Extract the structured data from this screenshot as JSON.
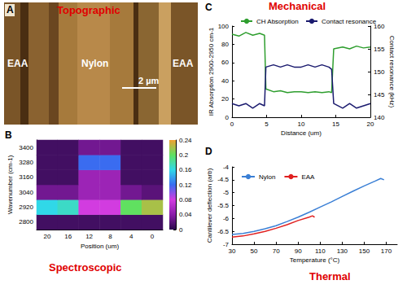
{
  "chart_data": [
    {
      "panel": "A",
      "type": "image",
      "title": "Topographic",
      "labels": [
        "EAA",
        "Nylon",
        "EAA"
      ],
      "scale_bar": "2 µm"
    },
    {
      "panel": "B",
      "type": "heatmap",
      "title": "Spectroscopic",
      "xlabel": "Position (um)",
      "ylabel": "Wavenumber (cm-1)",
      "x": [
        20,
        16,
        12,
        8,
        4,
        0
      ],
      "y": [
        2800,
        2920,
        3040,
        3160,
        3280,
        3400
      ],
      "cells": [
        [
          0.01,
          0.01,
          0.01,
          0.01,
          0.01,
          0.01
        ],
        [
          0.16,
          0.17,
          0.08,
          0.08,
          0.2,
          0.22
        ],
        [
          0.03,
          0.03,
          0.05,
          0.05,
          0.03,
          0.02
        ],
        [
          0.01,
          0.01,
          0.05,
          0.05,
          0.01,
          0.01
        ],
        [
          0.01,
          0.01,
          0.12,
          0.12,
          0.01,
          0.01
        ],
        [
          0.01,
          0.01,
          0.03,
          0.03,
          0.01,
          0.01
        ]
      ],
      "zlim": [
        0,
        0.24
      ],
      "zticks": [
        0,
        0.04,
        0.08,
        0.12,
        0.16,
        0.2,
        0.24
      ]
    },
    {
      "panel": "C",
      "type": "line",
      "title": "Mechanical",
      "xlabel": "Distance (um)",
      "ylabel": "IR Absorption 2900-2950 cm-1",
      "y2label": "Contact resonance (kHz)",
      "x": [
        0,
        1,
        2,
        3,
        4,
        4.7,
        4.9,
        6,
        7,
        8,
        9,
        10,
        11,
        12,
        13,
        14,
        14.4,
        14.7,
        16,
        17,
        18,
        19,
        20
      ],
      "series": [
        {
          "name": "CH Absorption",
          "color": "#2e9e2e",
          "values": [
            91,
            89,
            93,
            90,
            92,
            90,
            31,
            28,
            29,
            27,
            28,
            28,
            27,
            28,
            27,
            28,
            27,
            75,
            77,
            75,
            78,
            76,
            77
          ]
        },
        {
          "name": "Contact resonance",
          "color": "#1a1a6e",
          "axis": "y2",
          "values": [
            143,
            142.5,
            143,
            142,
            143,
            142.5,
            151,
            151.5,
            151,
            151.5,
            151,
            151,
            151.5,
            151,
            151.5,
            151,
            150.5,
            143,
            142,
            143,
            142,
            142.5,
            143
          ]
        }
      ],
      "xlim": [
        0,
        20
      ],
      "xticks": [
        0,
        5,
        10,
        15,
        20
      ],
      "ylim": [
        0,
        100
      ],
      "yticks": [
        0,
        20,
        40,
        60,
        80,
        100
      ],
      "y2lim": [
        140,
        160
      ],
      "y2ticks": [
        140,
        145,
        150,
        155,
        160
      ],
      "grid": false,
      "legend": "top"
    },
    {
      "panel": "D",
      "type": "line",
      "title": "Thermal",
      "xlabel": "Temperature (°C)",
      "ylabel": "Cantilever deflection (arb)",
      "series": [
        {
          "name": "Nylon",
          "color": "#3a7fd5",
          "x": [
            30,
            40,
            50,
            60,
            70,
            80,
            90,
            100,
            110,
            120,
            130,
            140,
            150,
            160,
            165,
            168
          ],
          "values": [
            -6.62,
            -6.58,
            -6.5,
            -6.4,
            -6.28,
            -6.12,
            -5.95,
            -5.76,
            -5.56,
            -5.36,
            -5.15,
            -4.94,
            -4.74,
            -4.55,
            -4.45,
            -4.5
          ]
        },
        {
          "name": "EAA",
          "color": "#e02020",
          "x": [
            30,
            40,
            50,
            60,
            70,
            80,
            90,
            100,
            103,
            105
          ],
          "values": [
            -6.72,
            -6.68,
            -6.6,
            -6.5,
            -6.38,
            -6.24,
            -6.08,
            -5.95,
            -5.9,
            -5.95
          ]
        }
      ],
      "xlim": [
        30,
        180
      ],
      "xticks": [
        30,
        50,
        70,
        90,
        110,
        130,
        150,
        170
      ],
      "ylim": [
        -7,
        -4
      ],
      "yticks": [
        -7,
        -6.5,
        -6,
        -5.5,
        -5,
        -4.5,
        -4
      ],
      "grid": false,
      "legend": "top-left"
    }
  ]
}
